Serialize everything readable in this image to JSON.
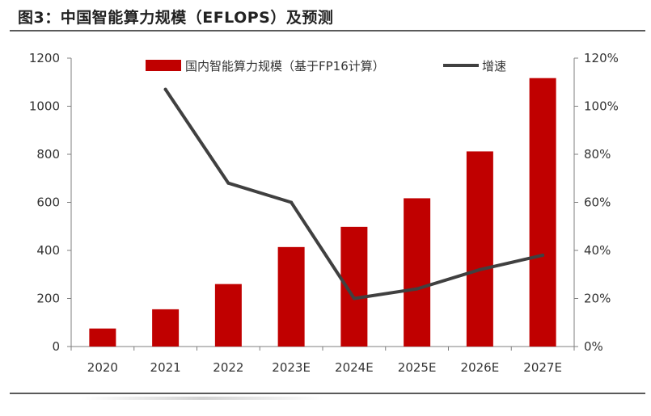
{
  "figure": {
    "title": "图3：中国智能算力规模（EFLOPS）及预测"
  },
  "colors": {
    "bar": "#C00000",
    "line": "#404040",
    "axis": "#7f7f7f"
  },
  "chart_data": {
    "type": "bar",
    "title": "",
    "categories": [
      "2020",
      "2021",
      "2022",
      "2023E",
      "2024E",
      "2025E",
      "2026E",
      "2027E"
    ],
    "series": [
      {
        "name": "国内智能算力规模（基于FP16计算）",
        "type": "bar",
        "axis": "left",
        "values": [
          75,
          155,
          260,
          414,
          498,
          617,
          812,
          1117
        ]
      },
      {
        "name": "增速",
        "type": "line",
        "axis": "right",
        "values": [
          null,
          107,
          68,
          60,
          20,
          24,
          32,
          38
        ]
      }
    ],
    "y_left": {
      "min": 0,
      "max": 1200,
      "ticks": [
        "0",
        "200",
        "400",
        "600",
        "800",
        "1000",
        "1200"
      ]
    },
    "y_right": {
      "min": 0,
      "max": 120,
      "ticks": [
        "0%",
        "20%",
        "40%",
        "60%",
        "80%",
        "100%",
        "120%"
      ]
    },
    "legend_position": "top",
    "grid": false
  }
}
